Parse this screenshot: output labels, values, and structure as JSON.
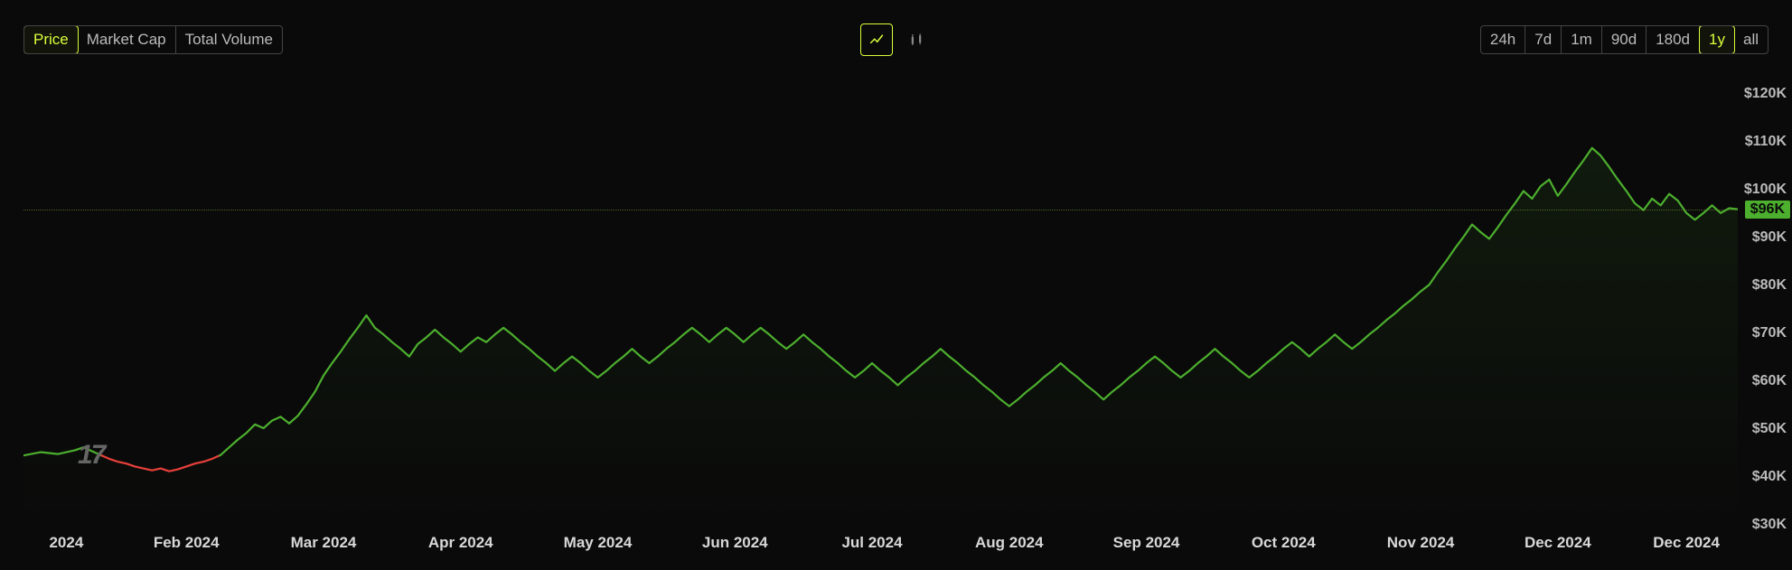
{
  "tabs": {
    "items": [
      "Price",
      "Market Cap",
      "Total Volume"
    ],
    "active_index": 0
  },
  "tools": {
    "line_active": true
  },
  "ranges": {
    "items": [
      "24h",
      "7d",
      "1m",
      "90d",
      "180d",
      "1y",
      "all"
    ],
    "active_index": 5
  },
  "chart": {
    "type": "line-area",
    "y_axis": {
      "min": 30000,
      "max": 125000,
      "ticks": [
        30000,
        40000,
        50000,
        60000,
        70000,
        80000,
        90000,
        100000,
        110000,
        120000
      ],
      "tick_labels": [
        "$30K",
        "$40K",
        "$50K",
        "$60K",
        "$70K",
        "$80K",
        "$90K",
        "$100K",
        "$110K",
        "$120K"
      ],
      "label_color": "#bbbbbb",
      "label_fontsize": 16
    },
    "current_price": {
      "value": 96000,
      "label": "$96K",
      "bg_color": "#4caf2e",
      "text_color": "#0a0a0a"
    },
    "reference_line": {
      "value": 96000,
      "style": "dotted",
      "color": "#6a8a2a"
    },
    "x_axis": {
      "labels": [
        "2024",
        "Feb 2024",
        "Mar 2024",
        "Apr 2024",
        "May 2024",
        "Jun 2024",
        "Jul 2024",
        "Aug 2024",
        "Sep 2024",
        "Oct 2024",
        "Nov 2024",
        "Dec 2024",
        "Dec 2024"
      ],
      "positions_pct": [
        1.5,
        9.5,
        17.5,
        25.5,
        33.5,
        41.5,
        49.5,
        57.5,
        65.5,
        73.5,
        81.5,
        89.5,
        97
      ],
      "label_color": "#d8d8d8",
      "label_fontsize": 17,
      "label_weight": 700
    },
    "series": {
      "baseline_value": 44500,
      "up_color": "#4caf2e",
      "down_color": "#e8403a",
      "line_width": 2.2,
      "area_fill_opacity_top": 0.1,
      "area_fill_opacity_bottom": 0.0,
      "data": [
        [
          0.0,
          44500
        ],
        [
          0.01,
          45200
        ],
        [
          0.02,
          44800
        ],
        [
          0.03,
          45600
        ],
        [
          0.035,
          46200
        ],
        [
          0.04,
          45400
        ],
        [
          0.045,
          44600
        ],
        [
          0.05,
          43800
        ],
        [
          0.055,
          43200
        ],
        [
          0.06,
          42800
        ],
        [
          0.065,
          42200
        ],
        [
          0.07,
          41800
        ],
        [
          0.075,
          41400
        ],
        [
          0.08,
          41800
        ],
        [
          0.085,
          41200
        ],
        [
          0.09,
          41600
        ],
        [
          0.095,
          42200
        ],
        [
          0.1,
          42800
        ],
        [
          0.105,
          43200
        ],
        [
          0.11,
          43800
        ],
        [
          0.115,
          44600
        ],
        [
          0.12,
          46200
        ],
        [
          0.125,
          47800
        ],
        [
          0.13,
          49200
        ],
        [
          0.135,
          51000
        ],
        [
          0.14,
          50200
        ],
        [
          0.145,
          51800
        ],
        [
          0.15,
          52600
        ],
        [
          0.155,
          51200
        ],
        [
          0.16,
          52800
        ],
        [
          0.165,
          55200
        ],
        [
          0.17,
          57800
        ],
        [
          0.175,
          61200
        ],
        [
          0.18,
          63800
        ],
        [
          0.185,
          66200
        ],
        [
          0.19,
          68800
        ],
        [
          0.195,
          71200
        ],
        [
          0.2,
          73800
        ],
        [
          0.205,
          71200
        ],
        [
          0.21,
          69800
        ],
        [
          0.215,
          68200
        ],
        [
          0.22,
          66800
        ],
        [
          0.225,
          65200
        ],
        [
          0.23,
          67800
        ],
        [
          0.235,
          69200
        ],
        [
          0.24,
          70800
        ],
        [
          0.245,
          69200
        ],
        [
          0.25,
          67800
        ],
        [
          0.255,
          66200
        ],
        [
          0.26,
          67800
        ],
        [
          0.265,
          69200
        ],
        [
          0.27,
          68200
        ],
        [
          0.275,
          69800
        ],
        [
          0.28,
          71200
        ],
        [
          0.285,
          69800
        ],
        [
          0.29,
          68200
        ],
        [
          0.295,
          66800
        ],
        [
          0.3,
          65200
        ],
        [
          0.305,
          63800
        ],
        [
          0.31,
          62200
        ],
        [
          0.315,
          63800
        ],
        [
          0.32,
          65200
        ],
        [
          0.325,
          63800
        ],
        [
          0.33,
          62200
        ],
        [
          0.335,
          60800
        ],
        [
          0.34,
          62200
        ],
        [
          0.345,
          63800
        ],
        [
          0.35,
          65200
        ],
        [
          0.355,
          66800
        ],
        [
          0.36,
          65200
        ],
        [
          0.365,
          63800
        ],
        [
          0.37,
          65200
        ],
        [
          0.375,
          66800
        ],
        [
          0.38,
          68200
        ],
        [
          0.385,
          69800
        ],
        [
          0.39,
          71200
        ],
        [
          0.395,
          69800
        ],
        [
          0.4,
          68200
        ],
        [
          0.405,
          69800
        ],
        [
          0.41,
          71200
        ],
        [
          0.415,
          69800
        ],
        [
          0.42,
          68200
        ],
        [
          0.425,
          69800
        ],
        [
          0.43,
          71200
        ],
        [
          0.435,
          69800
        ],
        [
          0.44,
          68200
        ],
        [
          0.445,
          66800
        ],
        [
          0.45,
          68200
        ],
        [
          0.455,
          69800
        ],
        [
          0.46,
          68200
        ],
        [
          0.465,
          66800
        ],
        [
          0.47,
          65200
        ],
        [
          0.475,
          63800
        ],
        [
          0.48,
          62200
        ],
        [
          0.485,
          60800
        ],
        [
          0.49,
          62200
        ],
        [
          0.495,
          63800
        ],
        [
          0.5,
          62200
        ],
        [
          0.505,
          60800
        ],
        [
          0.51,
          59200
        ],
        [
          0.515,
          60800
        ],
        [
          0.52,
          62200
        ],
        [
          0.525,
          63800
        ],
        [
          0.53,
          65200
        ],
        [
          0.535,
          66800
        ],
        [
          0.54,
          65200
        ],
        [
          0.545,
          63800
        ],
        [
          0.55,
          62200
        ],
        [
          0.555,
          60800
        ],
        [
          0.56,
          59200
        ],
        [
          0.565,
          57800
        ],
        [
          0.57,
          56200
        ],
        [
          0.575,
          54800
        ],
        [
          0.58,
          56200
        ],
        [
          0.585,
          57800
        ],
        [
          0.59,
          59200
        ],
        [
          0.595,
          60800
        ],
        [
          0.6,
          62200
        ],
        [
          0.605,
          63800
        ],
        [
          0.61,
          62200
        ],
        [
          0.615,
          60800
        ],
        [
          0.62,
          59200
        ],
        [
          0.625,
          57800
        ],
        [
          0.63,
          56200
        ],
        [
          0.635,
          57800
        ],
        [
          0.64,
          59200
        ],
        [
          0.645,
          60800
        ],
        [
          0.65,
          62200
        ],
        [
          0.655,
          63800
        ],
        [
          0.66,
          65200
        ],
        [
          0.665,
          63800
        ],
        [
          0.67,
          62200
        ],
        [
          0.675,
          60800
        ],
        [
          0.68,
          62200
        ],
        [
          0.685,
          63800
        ],
        [
          0.69,
          65200
        ],
        [
          0.695,
          66800
        ],
        [
          0.7,
          65200
        ],
        [
          0.705,
          63800
        ],
        [
          0.71,
          62200
        ],
        [
          0.715,
          60800
        ],
        [
          0.72,
          62200
        ],
        [
          0.725,
          63800
        ],
        [
          0.73,
          65200
        ],
        [
          0.735,
          66800
        ],
        [
          0.74,
          68200
        ],
        [
          0.745,
          66800
        ],
        [
          0.75,
          65200
        ],
        [
          0.755,
          66800
        ],
        [
          0.76,
          68200
        ],
        [
          0.765,
          69800
        ],
        [
          0.77,
          68200
        ],
        [
          0.775,
          66800
        ],
        [
          0.78,
          68200
        ],
        [
          0.785,
          69800
        ],
        [
          0.79,
          71200
        ],
        [
          0.795,
          72800
        ],
        [
          0.8,
          74200
        ],
        [
          0.805,
          75800
        ],
        [
          0.81,
          77200
        ],
        [
          0.815,
          78800
        ],
        [
          0.82,
          80200
        ],
        [
          0.825,
          82800
        ],
        [
          0.83,
          85200
        ],
        [
          0.835,
          87800
        ],
        [
          0.84,
          90200
        ],
        [
          0.845,
          92800
        ],
        [
          0.85,
          91200
        ],
        [
          0.855,
          89800
        ],
        [
          0.86,
          92200
        ],
        [
          0.865,
          94800
        ],
        [
          0.87,
          97200
        ],
        [
          0.875,
          99800
        ],
        [
          0.88,
          98200
        ],
        [
          0.885,
          100800
        ],
        [
          0.89,
          102200
        ],
        [
          0.895,
          98800
        ],
        [
          0.9,
          101200
        ],
        [
          0.905,
          103800
        ],
        [
          0.91,
          106200
        ],
        [
          0.915,
          108800
        ],
        [
          0.92,
          107200
        ],
        [
          0.925,
          104800
        ],
        [
          0.93,
          102200
        ],
        [
          0.935,
          99800
        ],
        [
          0.94,
          97200
        ],
        [
          0.945,
          95800
        ],
        [
          0.95,
          98200
        ],
        [
          0.955,
          96800
        ],
        [
          0.96,
          99200
        ],
        [
          0.965,
          97800
        ],
        [
          0.97,
          95200
        ],
        [
          0.975,
          93800
        ],
        [
          0.98,
          95200
        ],
        [
          0.985,
          96800
        ],
        [
          0.99,
          95200
        ],
        [
          0.995,
          96200
        ],
        [
          1.0,
          96000
        ]
      ]
    },
    "background_color": "#0a0a0a",
    "watermark": "17"
  }
}
